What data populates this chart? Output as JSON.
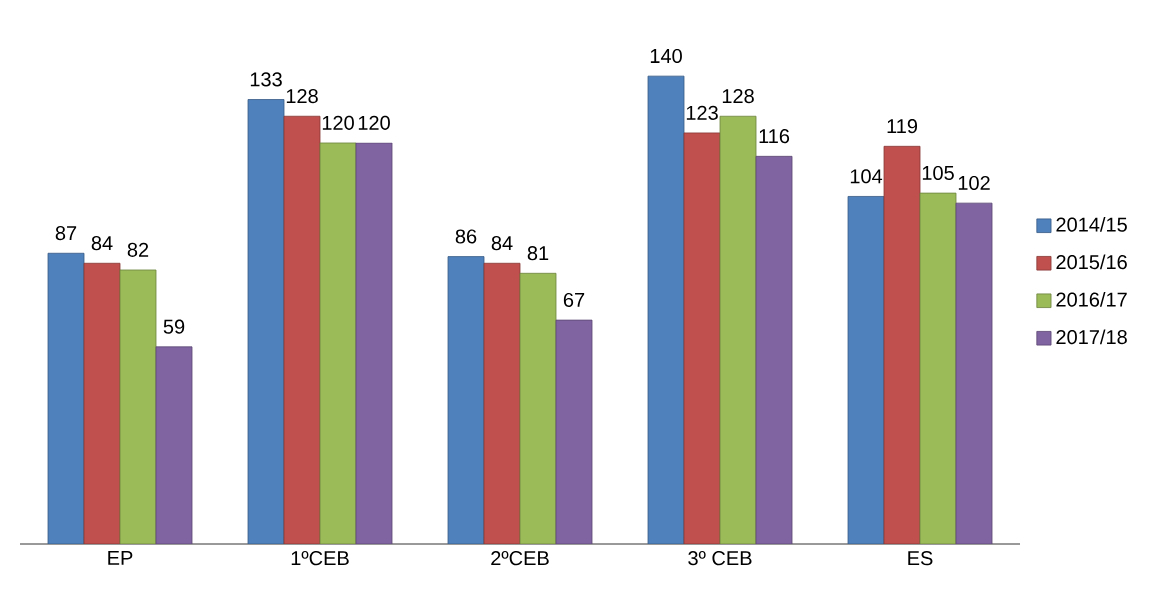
{
  "chart_data": {
    "type": "bar",
    "categories": [
      "EP",
      "1ºCEB",
      "2ºCEB",
      "3º CEB",
      "ES"
    ],
    "series": [
      {
        "name": "2014/15",
        "color": "#4f81bd",
        "values": [
          87,
          133,
          86,
          140,
          104
        ]
      },
      {
        "name": "2015/16",
        "color": "#c0504d",
        "values": [
          84,
          128,
          84,
          123,
          119
        ]
      },
      {
        "name": "2016/17",
        "color": "#9bbb59",
        "values": [
          82,
          120,
          81,
          128,
          105
        ]
      },
      {
        "name": "2017/18",
        "color": "#8064a2",
        "values": [
          59,
          120,
          67,
          116,
          102
        ]
      }
    ],
    "data_labels": true,
    "legend": "right"
  }
}
